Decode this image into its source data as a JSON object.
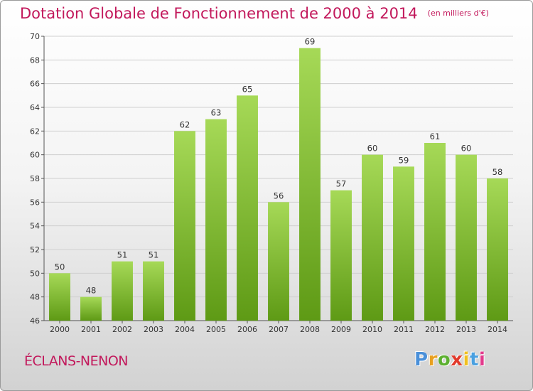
{
  "header": {
    "title": "Dotation Globale de Fonctionnement de 2000 à 2014",
    "unit": "(en milliers d'€)"
  },
  "footer": {
    "commune": "ÉCLANS-NENON",
    "logo_letters": [
      "P",
      "r",
      "o",
      "x",
      "i",
      "t",
      "i"
    ],
    "logo_colors": [
      "#4a90d9",
      "#e8a020",
      "#5cb030",
      "#e23a2c",
      "#f0c020",
      "#4aa0e0",
      "#e23a8c"
    ]
  },
  "chart_data": {
    "type": "bar",
    "categories": [
      "2000",
      "2001",
      "2002",
      "2003",
      "2004",
      "2005",
      "2006",
      "2007",
      "2008",
      "2009",
      "2010",
      "2011",
      "2012",
      "2013",
      "2014"
    ],
    "values": [
      50,
      48,
      51,
      51,
      62,
      63,
      65,
      56,
      69,
      57,
      60,
      59,
      61,
      60,
      58
    ],
    "ylim": [
      46,
      70
    ],
    "yticks": [
      46,
      48,
      50,
      52,
      54,
      56,
      58,
      60,
      62,
      64,
      66,
      68,
      70
    ],
    "grid": true,
    "colors": {
      "bar_top": "#a6d957",
      "bar_bottom": "#5e9a15",
      "grid": "#cfcfcf",
      "title": "#c2185b"
    }
  }
}
